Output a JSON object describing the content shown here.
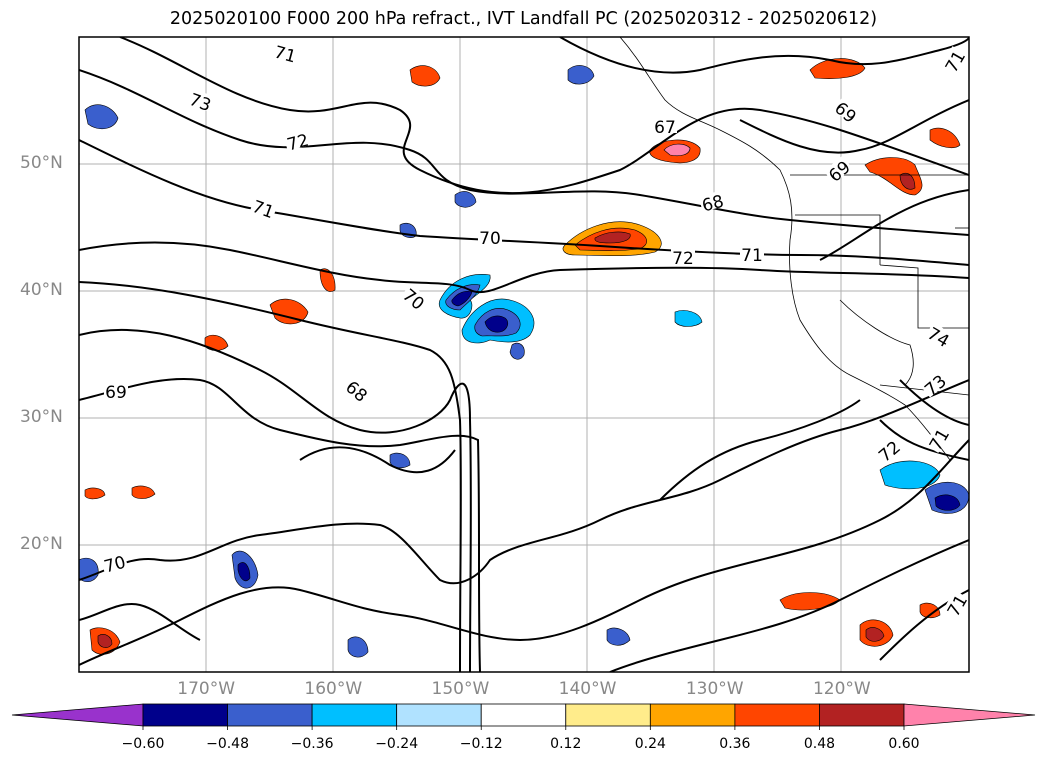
{
  "title": "2025020100 F000 200 hPa refract., IVT Landfall PC (2025020312 - 2025020612)",
  "map": {
    "lat_labels": [
      {
        "label": "50°N",
        "lat": 50
      },
      {
        "label": "40°N",
        "lat": 40
      },
      {
        "label": "30°N",
        "lat": 30
      },
      {
        "label": "20°N",
        "lat": 20
      }
    ],
    "lon_labels": [
      {
        "label": "170°W",
        "lon": -170
      },
      {
        "label": "160°W",
        "lon": -160
      },
      {
        "label": "150°W",
        "lon": -150
      },
      {
        "label": "140°W",
        "lon": -140
      },
      {
        "label": "130°W",
        "lon": -130
      },
      {
        "label": "120°W",
        "lon": -120
      }
    ],
    "lat_range": [
      10,
      60
    ],
    "lon_range": [
      -180,
      -110
    ],
    "contour_labels": [
      "71",
      "73",
      "72",
      "71",
      "70",
      "70",
      "69",
      "68",
      "67",
      "68",
      "72",
      "71",
      "69",
      "69",
      "71",
      "74",
      "73",
      "72",
      "71",
      "70",
      "71"
    ]
  },
  "colorbar": {
    "ticks": [
      "−0.60",
      "−0.48",
      "−0.36",
      "−0.24",
      "−0.12",
      "0.12",
      "0.24",
      "0.36",
      "0.48",
      "0.60"
    ],
    "colors": [
      "#9932cc",
      "#00008b",
      "#3a5fcd",
      "#00bfff",
      "#b0e2ff",
      "#ffffff",
      "#ffec8b",
      "#ffa500",
      "#ff4500",
      "#b22222",
      "#ff82ab"
    ]
  }
}
